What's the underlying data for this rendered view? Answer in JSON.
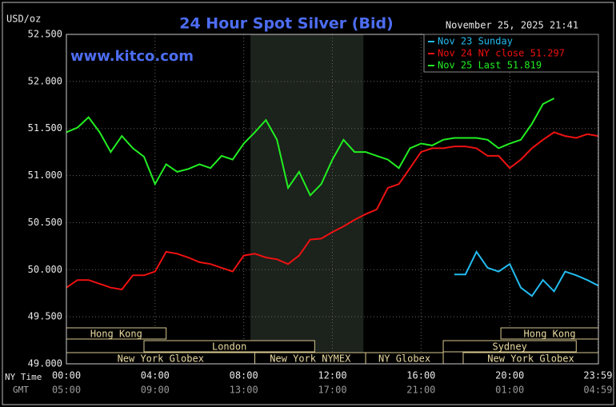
{
  "chart_data": {
    "type": "line",
    "title": "24 Hour Spot Silver (Bid)",
    "annotation": "www.kitco.com",
    "timestamp": "November 25, 2025 21:41",
    "y_label": "USD/oz",
    "x_label": "NY Time",
    "x2_label": "GMT",
    "xlim": [
      0,
      24
    ],
    "ylim": [
      49,
      52.5
    ],
    "grid": true,
    "xticks": [
      {
        "value": 0,
        "label": "00:00"
      },
      {
        "value": 4,
        "label": "04:00"
      },
      {
        "value": 8,
        "label": "08:00"
      },
      {
        "value": 12,
        "label": "12:00"
      },
      {
        "value": 16,
        "label": "16:00"
      },
      {
        "value": 20,
        "label": "20:00"
      },
      {
        "value": 23.98,
        "label": "23:59"
      }
    ],
    "x2ticks": [
      {
        "value": 0,
        "label": "05:00"
      },
      {
        "value": 4,
        "label": "09:00"
      },
      {
        "value": 8,
        "label": "13:00"
      },
      {
        "value": 12,
        "label": "17:00"
      },
      {
        "value": 16,
        "label": "21:00"
      },
      {
        "value": 20,
        "label": "01:00"
      },
      {
        "value": 23.98,
        "label": "04:59"
      }
    ],
    "yticks": [
      {
        "value": 52.5,
        "label": "52.500"
      },
      {
        "value": 52,
        "label": "52.000"
      },
      {
        "value": 51.5,
        "label": "51.500"
      },
      {
        "value": 51,
        "label": "51.000"
      },
      {
        "value": 50.5,
        "label": "50.500"
      },
      {
        "value": 50,
        "label": "50.000"
      },
      {
        "value": 49.5,
        "label": "49.500"
      },
      {
        "value": 49,
        "label": "49.000"
      }
    ],
    "shaded_span": [
      8.3,
      13.4
    ],
    "sessions": [
      {
        "name": "Hong Kong",
        "start": 0,
        "end": 4.5,
        "row": 0
      },
      {
        "name": "London",
        "start": 3.5,
        "end": 11.2,
        "row": 1
      },
      {
        "name": "New York Globex",
        "start": 0,
        "end": 8.5,
        "row": 2
      },
      {
        "name": "New York NYMEX",
        "start": 8.5,
        "end": 13.5,
        "row": 2
      },
      {
        "name": "NY Globex",
        "start": 13.5,
        "end": 17,
        "row": 2
      },
      {
        "name": "Hong Kong",
        "start": 19.6,
        "end": 24,
        "row": 0
      },
      {
        "name": "Sydney",
        "start": 17,
        "end": 23,
        "row": 1
      },
      {
        "name": "New York Globex",
        "start": 17.9,
        "end": 24,
        "row": 2
      }
    ],
    "x": [
      0,
      0.5,
      1,
      1.5,
      2,
      2.5,
      3,
      3.5,
      4,
      4.5,
      5,
      5.5,
      6,
      6.5,
      7,
      7.5,
      8,
      8.5,
      9,
      9.5,
      10,
      10.5,
      11,
      11.5,
      12,
      12.5,
      13,
      13.5,
      14,
      14.5,
      15,
      15.5,
      16,
      16.5,
      17,
      17.5,
      18,
      18.5,
      19,
      19.5,
      20,
      20.5,
      21,
      21.5,
      22,
      22.5,
      23,
      23.5,
      24
    ],
    "series": [
      {
        "name": "Nov 23 Sunday",
        "color": "#22bbee",
        "values": [
          null,
          null,
          null,
          null,
          null,
          null,
          null,
          null,
          null,
          null,
          null,
          null,
          null,
          null,
          null,
          null,
          null,
          null,
          null,
          null,
          null,
          null,
          null,
          null,
          null,
          null,
          null,
          null,
          null,
          null,
          null,
          null,
          null,
          null,
          null,
          49.95,
          49.95,
          50.19,
          50.02,
          49.98,
          50.06,
          49.81,
          49.72,
          49.89,
          49.77,
          49.98,
          49.94,
          49.89,
          49.83
        ]
      },
      {
        "name": "Nov 24 NY close 51.297",
        "color": "#ee1111",
        "values": [
          49.81,
          49.89,
          49.89,
          49.85,
          49.81,
          49.79,
          49.94,
          49.94,
          49.98,
          50.19,
          50.17,
          50.13,
          50.08,
          50.06,
          50.02,
          49.98,
          50.15,
          50.17,
          50.13,
          50.11,
          50.06,
          50.15,
          50.32,
          50.33,
          50.4,
          50.46,
          50.53,
          50.59,
          50.64,
          50.87,
          50.91,
          51.08,
          51.25,
          51.29,
          51.29,
          51.31,
          51.31,
          51.29,
          51.21,
          51.21,
          51.08,
          51.17,
          51.29,
          51.38,
          51.46,
          51.42,
          51.4,
          51.44,
          51.42
        ]
      },
      {
        "name": "Nov 25 Last 51.819",
        "color": "#22ee22",
        "values": [
          51.46,
          51.51,
          51.62,
          51.46,
          51.25,
          51.42,
          51.29,
          51.2,
          50.91,
          51.12,
          51.04,
          51.07,
          51.12,
          51.08,
          51.21,
          51.17,
          51.34,
          51.46,
          51.59,
          51.38,
          50.87,
          51.04,
          50.79,
          50.91,
          51.17,
          51.38,
          51.25,
          51.25,
          51.21,
          51.17,
          51.08,
          51.29,
          51.34,
          51.32,
          51.38,
          51.4,
          51.4,
          51.4,
          51.38,
          51.29,
          51.34,
          51.38,
          51.55,
          51.76,
          51.82,
          null,
          null,
          null,
          null
        ]
      }
    ]
  }
}
